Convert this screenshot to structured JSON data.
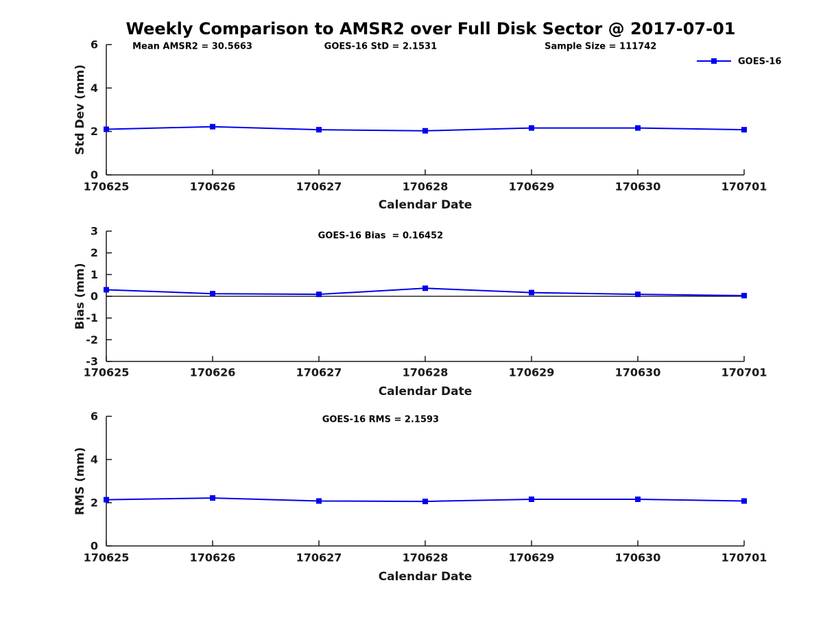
{
  "title": "Weekly Comparison to AMSR2 over Full Disk Sector @ 2017-07-01",
  "colors": {
    "line": "#0000ee",
    "marker": "#0000ee",
    "axis": "#1a1a1a",
    "zero_line": "#000000",
    "text": "#000000"
  },
  "legend": {
    "series_label": "GOES-16"
  },
  "xlabel": "Calendar Date",
  "x_tick_labels": [
    "170625",
    "170626",
    "170627",
    "170628",
    "170629",
    "170630",
    "170701"
  ],
  "chart_data": [
    {
      "name": "std-dev",
      "type": "line",
      "series_name": "GOES-16",
      "ylabel": "Std Dev (mm)",
      "ylim": [
        0,
        6
      ],
      "yticks": [
        0,
        2,
        4,
        6
      ],
      "categories": [
        "170625",
        "170626",
        "170627",
        "170628",
        "170629",
        "170630",
        "170701"
      ],
      "values": [
        2.1,
        2.22,
        2.08,
        2.03,
        2.16,
        2.16,
        2.08
      ],
      "annotations": [
        "Mean AMSR2 = 30.5663",
        "GOES-16 StD = 2.1531",
        "Sample Size = 111742"
      ],
      "xlabel": "Calendar Date",
      "legend": true,
      "zero_line": false
    },
    {
      "name": "bias",
      "type": "line",
      "series_name": "GOES-16",
      "ylabel": "Bias (mm)",
      "ylim": [
        -3,
        3
      ],
      "yticks": [
        -3,
        -2,
        -1,
        0,
        1,
        2,
        3
      ],
      "categories": [
        "170625",
        "170626",
        "170627",
        "170628",
        "170629",
        "170630",
        "170701"
      ],
      "values": [
        0.3,
        0.12,
        0.09,
        0.37,
        0.17,
        0.09,
        0.03
      ],
      "annotations": [
        "GOES-16 Bias  = 0.16452"
      ],
      "xlabel": "Calendar Date",
      "legend": false,
      "zero_line": true
    },
    {
      "name": "rms",
      "type": "line",
      "series_name": "GOES-16",
      "ylabel": "RMS (mm)",
      "ylim": [
        0,
        6
      ],
      "yticks": [
        0,
        2,
        4,
        6
      ],
      "categories": [
        "170625",
        "170626",
        "170627",
        "170628",
        "170629",
        "170630",
        "170701"
      ],
      "values": [
        2.14,
        2.22,
        2.08,
        2.06,
        2.16,
        2.16,
        2.08
      ],
      "annotations": [
        "GOES-16 RMS = 2.1593"
      ],
      "xlabel": "Calendar Date",
      "legend": false,
      "zero_line": false
    }
  ]
}
